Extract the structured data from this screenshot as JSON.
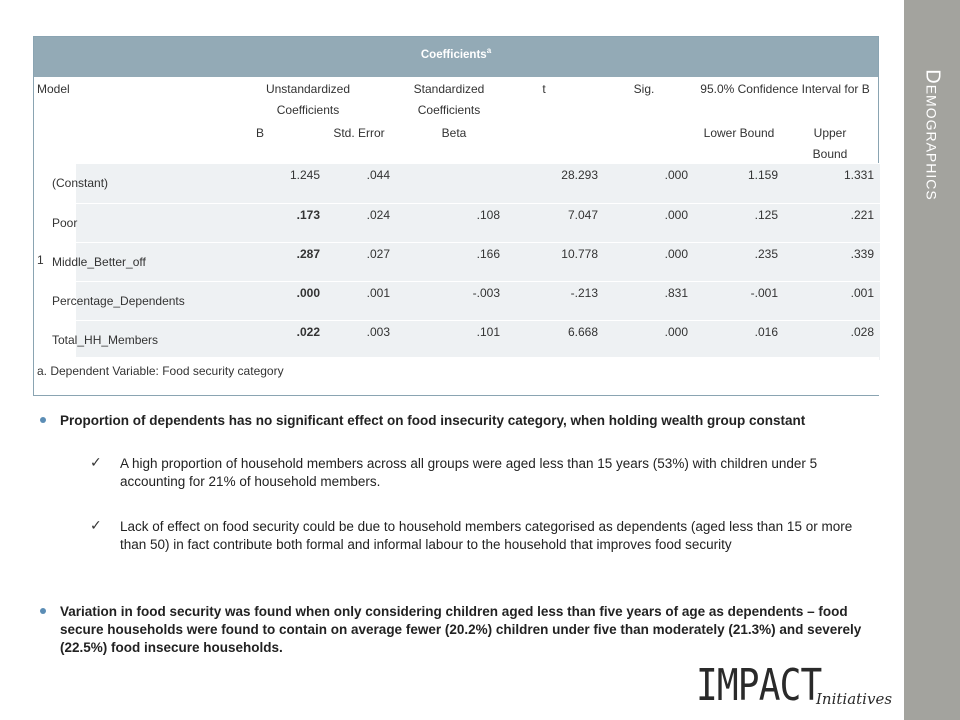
{
  "slide": {
    "title": "Demographics"
  },
  "table": {
    "caption": "Coefficients",
    "caption_sup": "a",
    "headers": {
      "model": "Model",
      "unstd": "Unstandardized Coefficients",
      "std": "Standardized Coefficients",
      "t": "t",
      "sig": "Sig.",
      "ci": "95.0% Confidence Interval for B",
      "b": "B",
      "se": "Std. Error",
      "beta": "Beta",
      "lower": "Lower Bound",
      "upper": "Upper Bound"
    },
    "model_number": "1",
    "rows": [
      {
        "name": "(Constant)",
        "b": "1.245",
        "se": ".044",
        "beta": "",
        "t": "28.293",
        "sig": ".000",
        "lower": "1.159",
        "upper": "1.331"
      },
      {
        "name": "Poor",
        "b": ".173",
        "se": ".024",
        "beta": ".108",
        "t": "7.047",
        "sig": ".000",
        "lower": ".125",
        "upper": ".221"
      },
      {
        "name": "Middle_Better_off",
        "b": ".287",
        "se": ".027",
        "beta": ".166",
        "t": "10.778",
        "sig": ".000",
        "lower": ".235",
        "upper": ".339"
      },
      {
        "name": "Percentage_Dependents",
        "b": ".000",
        "se": ".001",
        "beta": "-.003",
        "t": "-.213",
        "sig": ".831",
        "lower": "-.001",
        "upper": ".001"
      },
      {
        "name": "Total_HH_Members",
        "b": ".022",
        "se": ".003",
        "beta": ".101",
        "t": "6.668",
        "sig": ".000",
        "lower": ".016",
        "upper": ".028"
      }
    ],
    "footnote": "a. Dependent Variable: Food security category"
  },
  "bullets": {
    "b1": "Proportion of dependents has no significant  effect on food insecurity category, when holding wealth group constant",
    "c1": "A high proportion of household members across all groups were aged less than 15 years (53%) with children under 5 accounting for 21% of household members.",
    "c2": "Lack of effect on food security could be due to household members categorised as dependents  (aged less than 15 or more than 50) in fact contribute both formal and informal labour to the household that improves food security",
    "b2": "Variation in food security was found when only considering children aged less than five years of age as dependents – food secure households were found to contain on average fewer (20.2%) children under five than moderately (21.3%) and severely (22.5%) food insecure households."
  },
  "logo": {
    "main": "IMPACT",
    "sub": "Initiatives"
  },
  "colors": {
    "sidebar": "#a3a39e",
    "caption_bg": "#93aab6",
    "bullet": "#5b8db5"
  }
}
